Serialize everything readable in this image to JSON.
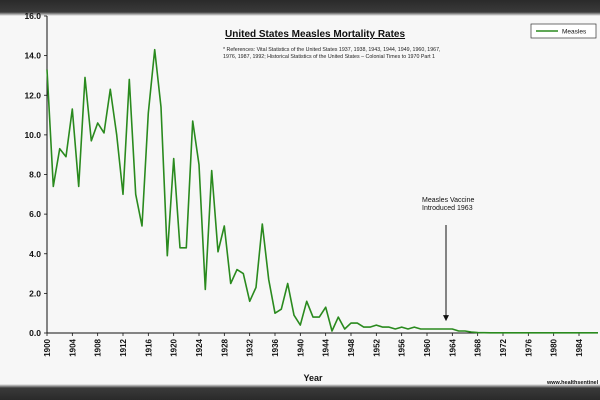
{
  "chart_data": {
    "type": "line",
    "title": "United States Measles Mortality Rates",
    "references": [
      "* References: Vital Statistics of the United States 1937, 1938, 1943, 1944, 1949, 1960, 1967,",
      "1976, 1987, 1992; Historical Statistics of the United States – Colonial Times to 1970 Part 1"
    ],
    "xlabel": "Year",
    "ylabel": "",
    "ylim": [
      0,
      16
    ],
    "yticks": [
      "0.0",
      "2.0",
      "4.0",
      "6.0",
      "8.0",
      "10.0",
      "12.0",
      "14.0",
      "16.0"
    ],
    "xticks": [
      "1900",
      "1904",
      "1908",
      "1912",
      "1916",
      "1920",
      "1924",
      "1928",
      "1932",
      "1936",
      "1940",
      "1944",
      "1948",
      "1952",
      "1956",
      "1960",
      "1964",
      "1968",
      "1972",
      "1976",
      "1980",
      "1984"
    ],
    "xlim": [
      1900,
      1987
    ],
    "legend_position": "top-right",
    "series_color": "#2a8a1e",
    "series": [
      {
        "name": "Measles",
        "x": [
          1900,
          1901,
          1902,
          1903,
          1904,
          1905,
          1906,
          1907,
          1908,
          1909,
          1910,
          1911,
          1912,
          1913,
          1914,
          1915,
          1916,
          1917,
          1918,
          1919,
          1920,
          1921,
          1922,
          1923,
          1924,
          1925,
          1926,
          1927,
          1928,
          1929,
          1930,
          1931,
          1932,
          1933,
          1934,
          1935,
          1936,
          1937,
          1938,
          1939,
          1940,
          1941,
          1942,
          1943,
          1944,
          1945,
          1946,
          1947,
          1948,
          1949,
          1950,
          1951,
          1952,
          1953,
          1954,
          1955,
          1956,
          1957,
          1958,
          1959,
          1960,
          1961,
          1962,
          1963,
          1964,
          1965,
          1966,
          1967,
          1968,
          1970,
          1975,
          1980,
          1985,
          1987
        ],
        "values": [
          13.3,
          7.4,
          9.3,
          8.9,
          11.3,
          7.4,
          12.9,
          9.7,
          10.6,
          10.1,
          12.3,
          10.0,
          7.0,
          12.8,
          7.0,
          5.4,
          11.1,
          14.3,
          11.4,
          3.9,
          8.8,
          4.3,
          4.3,
          10.7,
          8.5,
          2.2,
          8.2,
          4.1,
          5.4,
          2.5,
          3.2,
          3.0,
          1.6,
          2.3,
          5.5,
          2.7,
          1.0,
          1.2,
          2.5,
          0.9,
          0.4,
          1.6,
          0.8,
          0.8,
          1.3,
          0.1,
          0.8,
          0.2,
          0.5,
          0.5,
          0.3,
          0.3,
          0.4,
          0.3,
          0.3,
          0.2,
          0.3,
          0.2,
          0.3,
          0.2,
          0.2,
          0.2,
          0.2,
          0.2,
          0.2,
          0.1,
          0.1,
          0.05,
          0.02,
          0.01,
          0.01,
          0.01,
          0.01,
          0.01
        ]
      }
    ],
    "annotations": [
      {
        "lines": [
          "Measles Vaccine",
          "Introduced 1963"
        ],
        "year": 1963,
        "arrow_to": 0.6
      }
    ]
  },
  "footer": {
    "website": "www.healthsentinel"
  }
}
